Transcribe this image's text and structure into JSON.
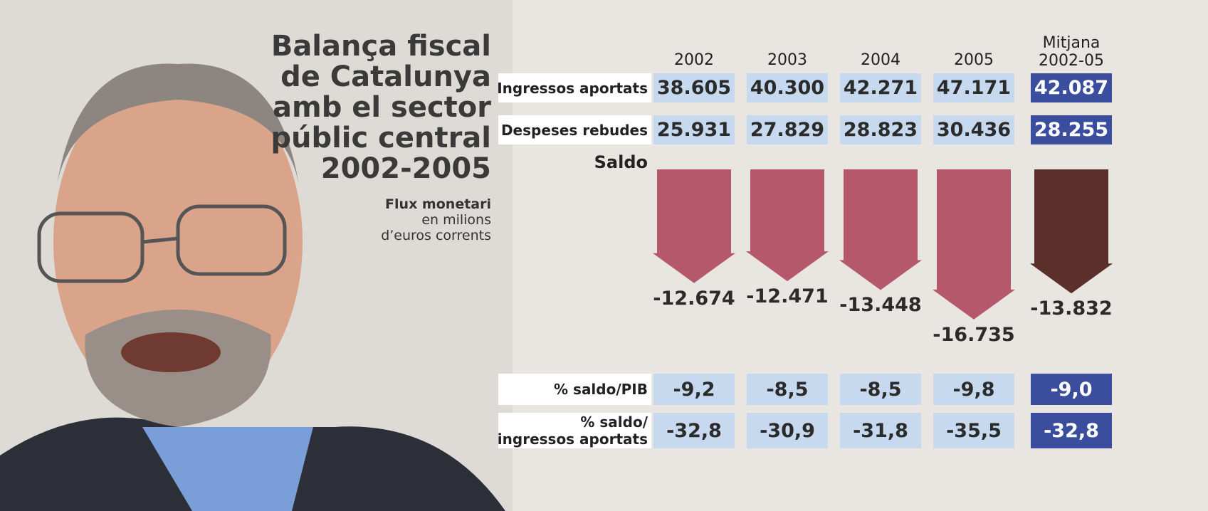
{
  "title": [
    "Balança fiscal",
    "de Catalunya",
    "amb el sector",
    "públic central",
    "2002-2005"
  ],
  "subtitle": [
    "Flux monetari",
    "en milions",
    "d’euros corrents"
  ],
  "columns": [
    "2002",
    "2003",
    "2004",
    "2005",
    "Mitjana\n2002-05"
  ],
  "rows": [
    {
      "label": "Ingressos aportats",
      "values": [
        38605,
        40300,
        42271,
        47171,
        42087
      ],
      "value_labels": [
        "38.605",
        "40.300",
        "42.271",
        "47.171",
        "42.087"
      ]
    },
    {
      "label": "Despeses rebudes",
      "values": [
        25931,
        27829,
        28823,
        30436,
        28255
      ],
      "value_labels": [
        "25.931",
        "27.829",
        "28.823",
        "30.436",
        "28.255"
      ]
    }
  ],
  "saldo": {
    "label": "Saldo",
    "values": [
      -12674,
      -12471,
      -13448,
      -16735,
      -13832
    ],
    "value_labels": [
      "-12.674",
      "-12.471",
      "-13.448",
      "-16.735",
      "-13.832"
    ],
    "colors": [
      "#b5586b",
      "#b5586b",
      "#b5586b",
      "#b5586b",
      "#5b302a"
    ]
  },
  "ratios": [
    {
      "label": "% saldo/PIB",
      "values": [
        -9.2,
        -8.5,
        -8.5,
        -9.8,
        -9.0
      ],
      "value_labels": [
        "-9,2",
        "-8,5",
        "-8,5",
        "-9,8",
        "-9,0"
      ]
    },
    {
      "label": "% saldo/\ningressos aportats",
      "values": [
        -32.8,
        -30.9,
        -31.8,
        -35.5,
        -32.8
      ],
      "value_labels": [
        "-32,8",
        "-30,9",
        "-31,8",
        "-35,5",
        "-32,8"
      ]
    }
  ]
}
